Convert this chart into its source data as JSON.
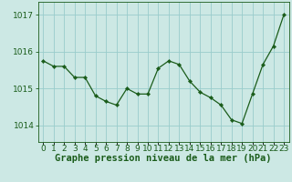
{
  "x": [
    0,
    1,
    2,
    3,
    4,
    5,
    6,
    7,
    8,
    9,
    10,
    11,
    12,
    13,
    14,
    15,
    16,
    17,
    18,
    19,
    20,
    21,
    22,
    23
  ],
  "y": [
    1015.75,
    1015.6,
    1015.6,
    1015.3,
    1015.3,
    1014.8,
    1014.65,
    1014.55,
    1015.0,
    1014.85,
    1014.85,
    1015.55,
    1015.75,
    1015.65,
    1015.2,
    1014.9,
    1014.75,
    1014.55,
    1014.15,
    1014.05,
    1014.85,
    1015.65,
    1016.15,
    1017.0
  ],
  "line_color": "#1a5c1a",
  "marker": "D",
  "marker_size": 2.2,
  "bg_color": "#cce8e4",
  "grid_color": "#99cccc",
  "axis_color": "#1a5c1a",
  "ylabel_ticks": [
    1014,
    1015,
    1016,
    1017
  ],
  "ylim": [
    1013.55,
    1017.35
  ],
  "xlim": [
    -0.5,
    23.5
  ],
  "xlabel": "Graphe pression niveau de la mer (hPa)",
  "xlabel_fontsize": 7.5,
  "tick_fontsize": 6.5,
  "title": ""
}
